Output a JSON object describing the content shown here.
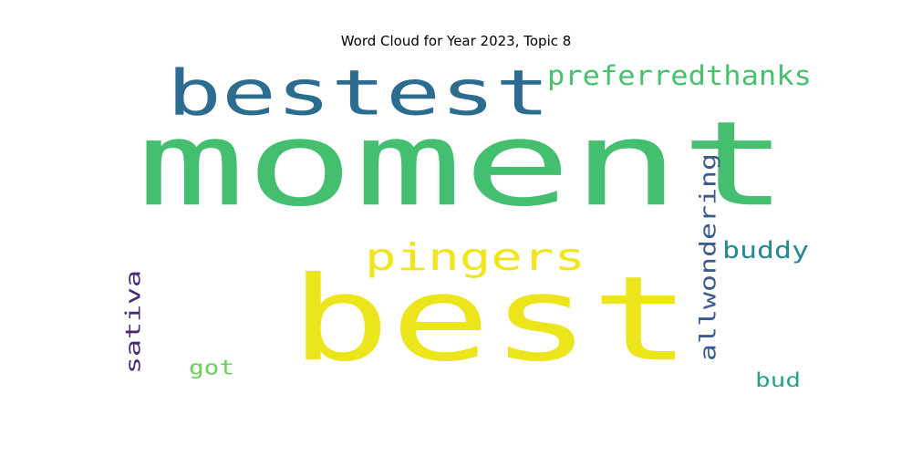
{
  "chart_data": {
    "type": "wordcloud",
    "title": "Word Cloud for Year 2023, Topic 8",
    "words": [
      {
        "text": "moment",
        "color": "#44bf70"
      },
      {
        "text": "best",
        "color": "#ece51b"
      },
      {
        "text": "bestest",
        "color": "#2c6c8e"
      },
      {
        "text": "preferredthanks",
        "color": "#48c16e"
      },
      {
        "text": "pingers",
        "color": "#f1e51d"
      },
      {
        "text": "allwondering",
        "color": "#3b5b8c"
      },
      {
        "text": "buddy",
        "color": "#25898e"
      },
      {
        "text": "sativa",
        "color": "#482878"
      },
      {
        "text": "got",
        "color": "#6ece58"
      },
      {
        "text": "bud",
        "color": "#26a484"
      }
    ]
  }
}
